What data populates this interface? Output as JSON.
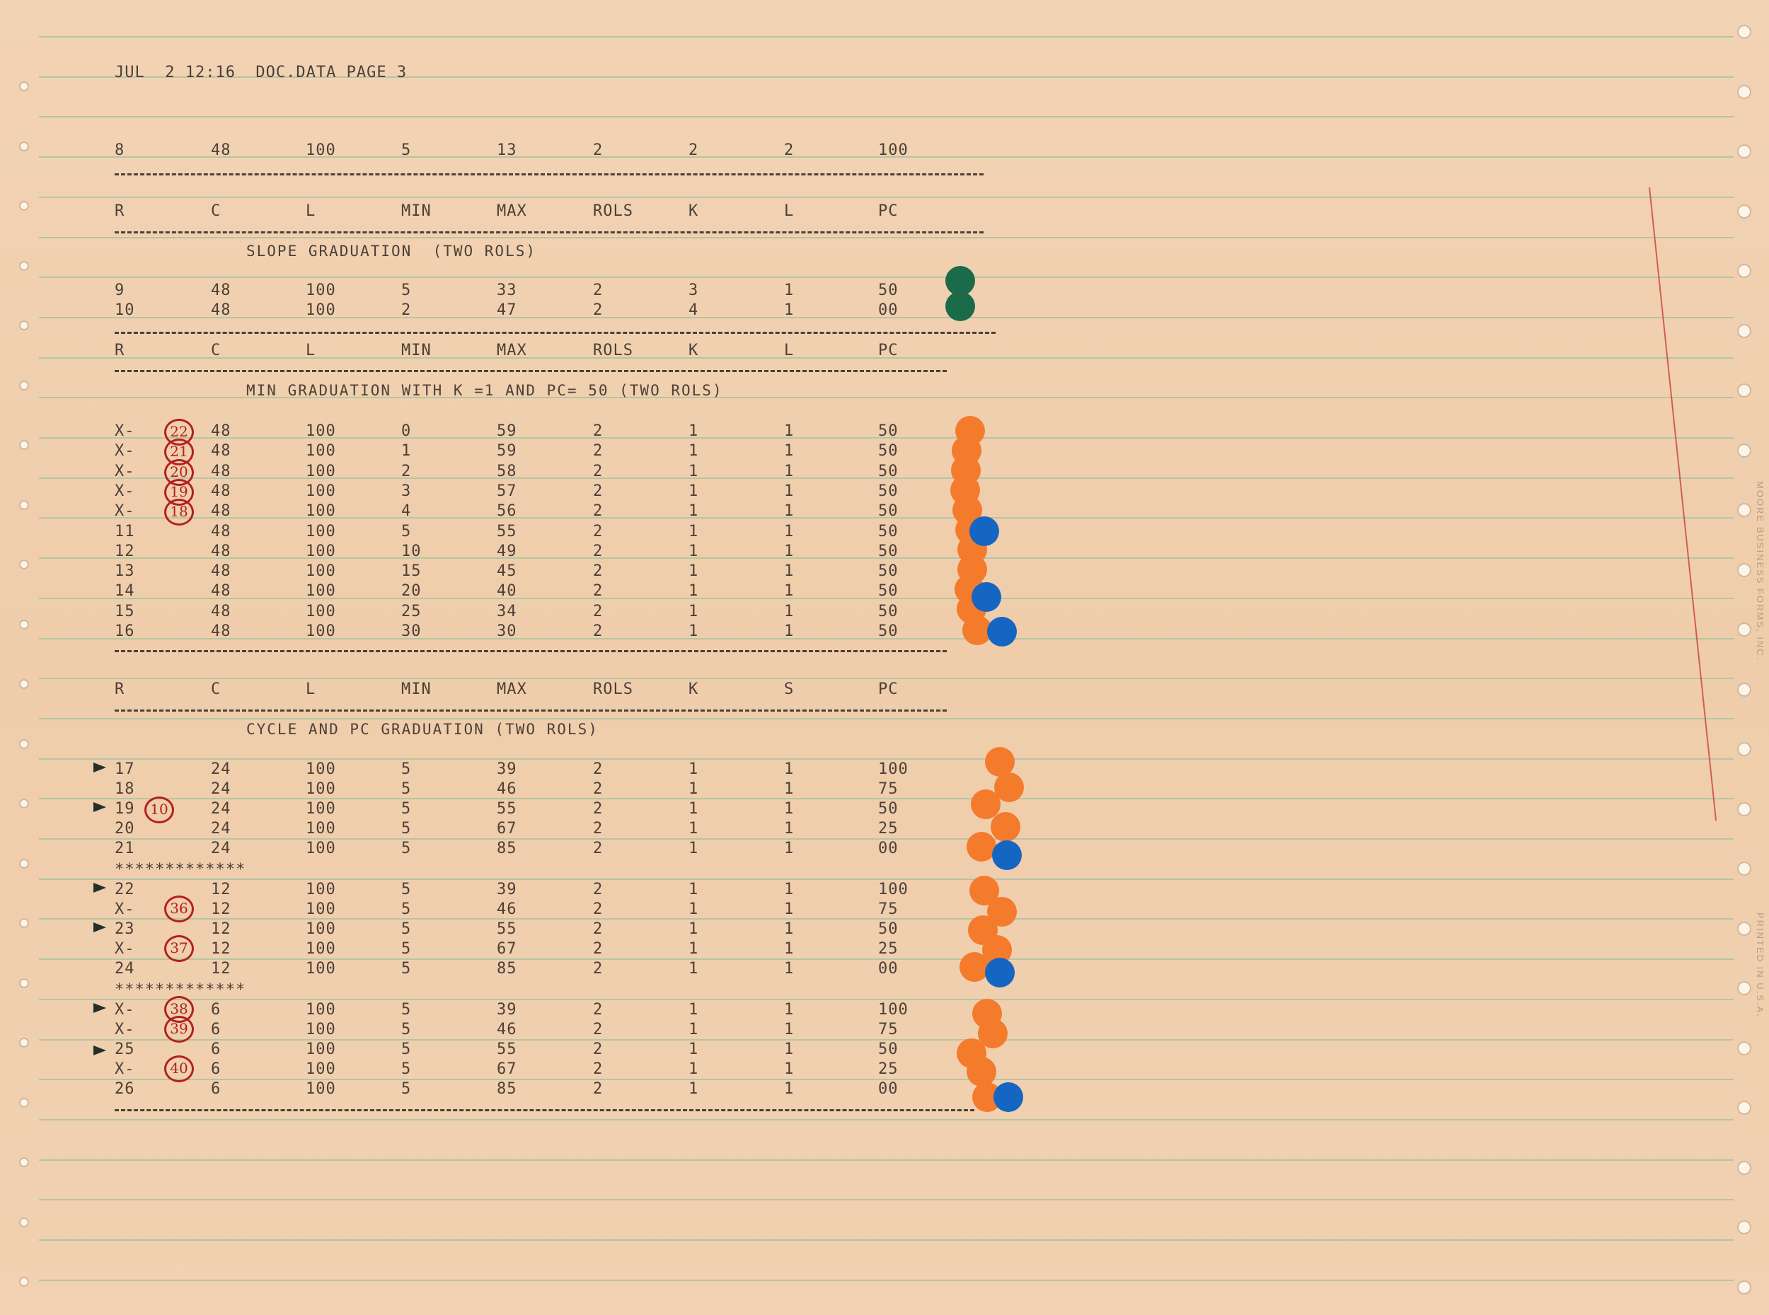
{
  "header": "JUL  2 12:16  DOC.DATA PAGE 3",
  "top_row": [
    "8",
    "48",
    "100",
    "5",
    "13",
    "2",
    "2",
    "2",
    "100"
  ],
  "col_headers_1": [
    "R",
    "C",
    "L",
    "MIN",
    "MAX",
    "ROLS",
    "K",
    "L",
    "PC"
  ],
  "section_1": {
    "title": "SLOPE GRADUATION  (TWO ROLS)",
    "rows": [
      [
        "9",
        "48",
        "100",
        "5",
        "33",
        "2",
        "3",
        "1",
        "50"
      ],
      [
        "10",
        "48",
        "100",
        "2",
        "47",
        "2",
        "4",
        "1",
        "00"
      ]
    ]
  },
  "col_headers_2": [
    "R",
    "C",
    "L",
    "MIN",
    "MAX",
    "ROLS",
    "K",
    "L",
    "PC"
  ],
  "section_2": {
    "title": "MIN GRADUATION WITH K =1 AND PC= 50 (TWO ROLS)",
    "rows": [
      [
        "X-",
        "48",
        "100",
        "0",
        "59",
        "2",
        "1",
        "1",
        "50"
      ],
      [
        "X-",
        "48",
        "100",
        "1",
        "59",
        "2",
        "1",
        "1",
        "50"
      ],
      [
        "X-",
        "48",
        "100",
        "2",
        "58",
        "2",
        "1",
        "1",
        "50"
      ],
      [
        "X-",
        "48",
        "100",
        "3",
        "57",
        "2",
        "1",
        "1",
        "50"
      ],
      [
        "X-",
        "48",
        "100",
        "4",
        "56",
        "2",
        "1",
        "1",
        "50"
      ],
      [
        "11",
        "48",
        "100",
        "5",
        "55",
        "2",
        "1",
        "1",
        "50"
      ],
      [
        "12",
        "48",
        "100",
        "10",
        "49",
        "2",
        "1",
        "1",
        "50"
      ],
      [
        "13",
        "48",
        "100",
        "15",
        "45",
        "2",
        "1",
        "1",
        "50"
      ],
      [
        "14",
        "48",
        "100",
        "20",
        "40",
        "2",
        "1",
        "1",
        "50"
      ],
      [
        "15",
        "48",
        "100",
        "25",
        "34",
        "2",
        "1",
        "1",
        "50"
      ],
      [
        "16",
        "48",
        "100",
        "30",
        "30",
        "2",
        "1",
        "1",
        "50"
      ]
    ],
    "circled": [
      "22",
      "21",
      "20",
      "19",
      "18"
    ]
  },
  "col_headers_3": [
    "R",
    "C",
    "L",
    "MIN",
    "MAX",
    "ROLS",
    "K",
    "S",
    "PC"
  ],
  "section_3": {
    "title": "CYCLE AND PC GRADUATION (TWO ROLS)",
    "rows": [
      [
        "17",
        "24",
        "100",
        "5",
        "39",
        "2",
        "1",
        "1",
        "100"
      ],
      [
        "18",
        "24",
        "100",
        "5",
        "46",
        "2",
        "1",
        "1",
        "75"
      ],
      [
        "19",
        "24",
        "100",
        "5",
        "55",
        "2",
        "1",
        "1",
        "50"
      ],
      [
        "20",
        "24",
        "100",
        "5",
        "67",
        "2",
        "1",
        "1",
        "25"
      ],
      [
        "21",
        "24",
        "100",
        "5",
        "85",
        "2",
        "1",
        "1",
        "00"
      ],
      [
        "22",
        "12",
        "100",
        "5",
        "39",
        "2",
        "1",
        "1",
        "100"
      ],
      [
        "X-",
        "12",
        "100",
        "5",
        "46",
        "2",
        "1",
        "1",
        "75"
      ],
      [
        "23",
        "12",
        "100",
        "5",
        "55",
        "2",
        "1",
        "1",
        "50"
      ],
      [
        "X-",
        "12",
        "100",
        "5",
        "67",
        "2",
        "1",
        "1",
        "25"
      ],
      [
        "24",
        "12",
        "100",
        "5",
        "85",
        "2",
        "1",
        "1",
        "00"
      ],
      [
        "X-",
        "6",
        "100",
        "5",
        "39",
        "2",
        "1",
        "1",
        "100"
      ],
      [
        "X-",
        "6",
        "100",
        "5",
        "46",
        "2",
        "1",
        "1",
        "75"
      ],
      [
        "25",
        "6",
        "100",
        "5",
        "55",
        "2",
        "1",
        "1",
        "50"
      ],
      [
        "X-",
        "6",
        "100",
        "5",
        "67",
        "2",
        "1",
        "1",
        "25"
      ],
      [
        "26",
        "6",
        "100",
        "5",
        "85",
        "2",
        "1",
        "1",
        "00"
      ]
    ],
    "circled": {
      "row_19": "10",
      "row_x1": "36",
      "row_x2": "37",
      "row_x3": "38",
      "row_x4": "39",
      "row_x5": "40"
    },
    "separator": "*************"
  },
  "side_text": "MOORE BUSINESS FORMS, INC.",
  "side_text_2": "PRINTED IN U.S.A.",
  "colors": {
    "paper": "#f0cfae",
    "rule": "#a9c3a2",
    "ink": "#4c4038",
    "red_ink": "#b2201e",
    "orange_dot": "#f47a2c",
    "blue_dot": "#1466c2",
    "green_dot": "#1b6b4a"
  }
}
